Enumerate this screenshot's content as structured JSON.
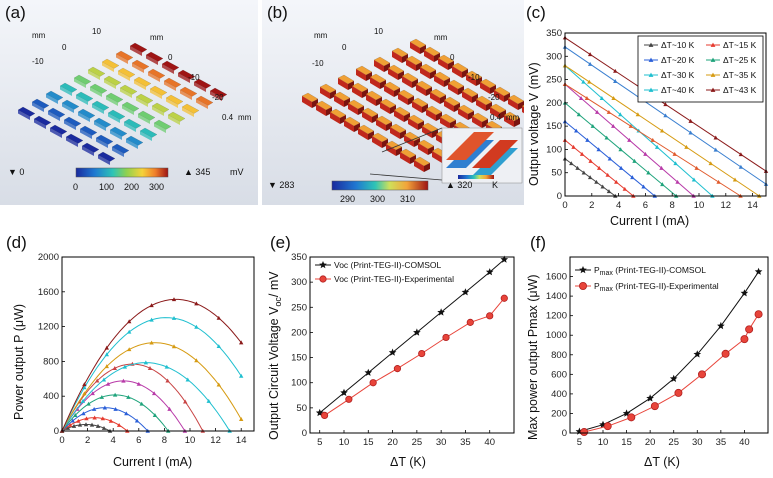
{
  "panel_labels": {
    "a": "(a)",
    "b": "(b)",
    "c": "(c)",
    "d": "(d)",
    "e": "(e)",
    "f": "(f)"
  },
  "colors": {
    "series": [
      "#4a4a4a",
      "#e03030",
      "#2d60d6",
      "#1fa67a",
      "#b5179e",
      "#c04040",
      "#1fbfcf",
      "#d69b12",
      "#8b1a1a"
    ],
    "comsol": "#111111",
    "experimental": "#e8443a",
    "frame": "#000000"
  },
  "fig_a": {
    "axis_ticks": [
      "mm",
      "10",
      "0",
      "-10",
      "mm",
      "0",
      "-10",
      "-20",
      "0.4"
    ],
    "depth_unit": "mm",
    "colorbar": {
      "min_marker": "▼ 0",
      "max_marker": "▲ 345",
      "unit": "mV",
      "ticks": [
        "0",
        "100",
        "200",
        "300"
      ]
    }
  },
  "fig_b": {
    "axis_ticks": [
      "mm",
      "10",
      "0",
      "-10",
      "mm",
      "0",
      "-10",
      "-20",
      "0.4"
    ],
    "depth_unit": "mm",
    "colorbar": {
      "min_marker": "▼ 283",
      "max_marker": "▲ 320",
      "unit": "K",
      "ticks": [
        "290",
        "300",
        "310"
      ]
    }
  },
  "chart_data": [
    {
      "id": "c",
      "type": "line",
      "xlabel": "Current I (mA)",
      "ylabel": "Output voltage V (mV)",
      "xlim": [
        0,
        15
      ],
      "ylim": [
        0,
        350
      ],
      "xticks": [
        "0",
        "2",
        "4",
        "6",
        "8",
        "10",
        "12",
        "14"
      ],
      "yticks": [
        "0",
        "50",
        "100",
        "150",
        "200",
        "250",
        "300",
        "350"
      ],
      "legend_position": "top-right",
      "series": [
        {
          "name": "ΔT~10 K",
          "isc": 3.75,
          "voc": 80
        },
        {
          "name": "ΔT~15 K",
          "isc": 5.1,
          "voc": 120
        },
        {
          "name": "ΔT~20 K",
          "isc": 6.7,
          "voc": 160
        },
        {
          "name": "ΔT~25 K",
          "isc": 8.3,
          "voc": 200
        },
        {
          "name": "ΔT~30 K",
          "isc": 9.6,
          "voc": 240
        },
        {
          "name": "ΔT~35 K",
          "isc": 11.0,
          "voc": 280
        },
        {
          "name": "ΔT~40 K",
          "isc": 16.3,
          "voc": 320
        },
        {
          "name": "ΔT~43 K",
          "isc": 17.8,
          "voc": 340
        }
      ],
      "extra_lines": [
        {
          "name": "",
          "isc": 14.5,
          "voc": 280
        },
        {
          "name": "",
          "isc": 13.1,
          "voc": 240
        }
      ]
    },
    {
      "id": "d",
      "type": "line",
      "xlabel": "Current I (mA)",
      "ylabel": "Power output P (μW)",
      "xlim": [
        0,
        15
      ],
      "ylim": [
        0,
        2000
      ],
      "xticks": [
        "0",
        "2",
        "4",
        "6",
        "8",
        "10",
        "12",
        "14"
      ],
      "yticks": [
        "0",
        "400",
        "800",
        "1200",
        "1600",
        "2000"
      ],
      "series_ref": "chart c series (P = V·I)"
    },
    {
      "id": "e",
      "type": "line",
      "xlabel": "ΔT (K)",
      "ylabel": "Output Circuit Voltage V",
      "ylabel_sub": "oc",
      "ylabel_tail": "/ mV",
      "xlim": [
        3,
        45
      ],
      "ylim": [
        0,
        350
      ],
      "xticks": [
        "5",
        "10",
        "15",
        "20",
        "25",
        "30",
        "35",
        "40"
      ],
      "yticks": [
        "0",
        "50",
        "100",
        "150",
        "200",
        "250",
        "300",
        "350"
      ],
      "legend_position": "top-left",
      "series": [
        {
          "name": "Voc (Print-TEG-II)-COMSOL",
          "x": [
            5,
            10,
            15,
            20,
            25,
            30,
            35,
            40,
            43
          ],
          "y": [
            40,
            80,
            120,
            160,
            200,
            240,
            280,
            320,
            345
          ]
        },
        {
          "name": "Voc (Print-TEG-II)-Experimental",
          "x": [
            6,
            11,
            16,
            21,
            26,
            31,
            36,
            40,
            43
          ],
          "y": [
            35,
            67,
            100,
            128,
            158,
            190,
            220,
            233,
            268
          ]
        }
      ]
    },
    {
      "id": "f",
      "type": "line",
      "xlabel": "ΔT (K)",
      "ylabel": "Max power output Pmax (μW)",
      "xlim": [
        3,
        45
      ],
      "ylim": [
        0,
        1800
      ],
      "xticks": [
        "5",
        "10",
        "15",
        "20",
        "25",
        "30",
        "35",
        "40"
      ],
      "yticks": [
        "0",
        "200",
        "400",
        "600",
        "800",
        "1000",
        "1200",
        "1400",
        "1600"
      ],
      "legend_position": "top-left",
      "series": [
        {
          "name": "Pmax (Print-TEG-II)-COMSOL",
          "label_main": "P",
          "label_sub": "max",
          "label_tail": " (Print-TEG-II)-COMSOL",
          "x": [
            5,
            10,
            15,
            20,
            25,
            30,
            35,
            40,
            43
          ],
          "y": [
            15,
            85,
            200,
            355,
            555,
            805,
            1095,
            1430,
            1650
          ]
        },
        {
          "name": "Pmax (Print-TEG-II)-Experimental",
          "label_main": "P",
          "label_sub": "max",
          "label_tail": " (Print-TEG-II)-Experimental",
          "x": [
            6,
            11,
            16,
            21,
            26,
            31,
            36,
            40,
            41,
            43
          ],
          "y": [
            10,
            70,
            160,
            275,
            410,
            600,
            810,
            960,
            1060,
            1215
          ]
        }
      ]
    }
  ]
}
